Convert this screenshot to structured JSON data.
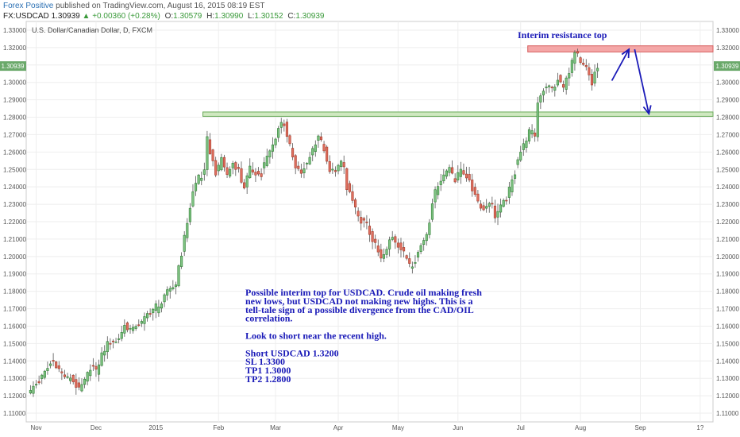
{
  "header": {
    "author": "Forex Positive",
    "published": "published on TradingView.com, August 16, 2015 08:19 EST",
    "symbol": "FX:USDCAD",
    "price": "1.30939",
    "change": "+0.00360 (+0.28%)",
    "o_label": "O:",
    "o_value": "1.30579",
    "h_label": "H:",
    "h_value": "1.30990",
    "l_label": "L:",
    "l_value": "1.30152",
    "c_label": "C:",
    "c_value": "1.30939"
  },
  "chart_data": {
    "type": "candlestick",
    "title": "U.S. Dollar/Canadian Dollar, D, FXCM",
    "ylim": [
      1.105,
      1.335
    ],
    "y_ticks": [
      "1.33000",
      "1.32000",
      "1.31000",
      "1.30000",
      "1.29000",
      "1.28000",
      "1.27000",
      "1.26000",
      "1.25000",
      "1.24000",
      "1.23000",
      "1.22000",
      "1.21000",
      "1.20000",
      "1.19000",
      "1.18000",
      "1.17000",
      "1.16000",
      "1.15000",
      "1.14000",
      "1.13000",
      "1.12000",
      "1.11000"
    ],
    "x_ticks": [
      {
        "label": "Nov",
        "bar": 3
      },
      {
        "label": "Dec",
        "bar": 24
      },
      {
        "label": "2015",
        "bar": 45
      },
      {
        "label": "Feb",
        "bar": 67
      },
      {
        "label": "Mar",
        "bar": 87
      },
      {
        "label": "Apr",
        "bar": 109
      },
      {
        "label": "May",
        "bar": 130
      },
      {
        "label": "Jun",
        "bar": 151
      },
      {
        "label": "Jul",
        "bar": 173
      },
      {
        "label": "Aug",
        "bar": 194
      },
      {
        "label": "Sep",
        "bar": 215
      },
      {
        "label": "1?",
        "bar": 236
      }
    ],
    "total_slots": 241,
    "current_price_label": "1.30939",
    "close_path": [
      [
        0,
        1.121
      ],
      [
        2,
        1.127
      ],
      [
        4,
        1.13
      ],
      [
        6,
        1.135
      ],
      [
        8,
        1.14
      ],
      [
        10,
        1.136
      ],
      [
        12,
        1.131
      ],
      [
        14,
        1.128
      ],
      [
        16,
        1.13
      ],
      [
        18,
        1.125
      ],
      [
        20,
        1.13
      ],
      [
        22,
        1.138
      ],
      [
        24,
        1.132
      ],
      [
        26,
        1.142
      ],
      [
        28,
        1.148
      ],
      [
        30,
        1.15
      ],
      [
        32,
        1.155
      ],
      [
        34,
        1.162
      ],
      [
        36,
        1.16
      ],
      [
        38,
        1.159
      ],
      [
        40,
        1.16
      ],
      [
        42,
        1.165
      ],
      [
        44,
        1.168
      ],
      [
        46,
        1.172
      ],
      [
        48,
        1.18
      ],
      [
        50,
        1.182
      ],
      [
        52,
        1.186
      ],
      [
        54,
        1.2
      ],
      [
        56,
        1.218
      ],
      [
        58,
        1.235
      ],
      [
        60,
        1.245
      ],
      [
        62,
        1.25
      ],
      [
        63,
        1.269
      ],
      [
        64,
        1.262
      ],
      [
        66,
        1.25
      ],
      [
        68,
        1.255
      ],
      [
        70,
        1.245
      ],
      [
        72,
        1.252
      ],
      [
        74,
        1.248
      ],
      [
        76,
        1.242
      ],
      [
        78,
        1.252
      ],
      [
        80,
        1.25
      ],
      [
        82,
        1.248
      ],
      [
        84,
        1.255
      ],
      [
        86,
        1.262
      ],
      [
        88,
        1.272
      ],
      [
        90,
        1.278
      ],
      [
        92,
        1.265
      ],
      [
        94,
        1.252
      ],
      [
        96,
        1.25
      ],
      [
        98,
        1.252
      ],
      [
        100,
        1.26
      ],
      [
        102,
        1.268
      ],
      [
        104,
        1.26
      ],
      [
        106,
        1.25
      ],
      [
        108,
        1.252
      ],
      [
        110,
        1.255
      ],
      [
        111,
        1.253
      ],
      [
        112,
        1.24
      ],
      [
        114,
        1.23
      ],
      [
        116,
        1.22
      ],
      [
        118,
        1.218
      ],
      [
        120,
        1.215
      ],
      [
        122,
        1.208
      ],
      [
        124,
        1.2
      ],
      [
        126,
        1.205
      ],
      [
        128,
        1.21
      ],
      [
        130,
        1.205
      ],
      [
        132,
        1.2
      ],
      [
        134,
        1.195
      ],
      [
        136,
        1.2
      ],
      [
        138,
        1.208
      ],
      [
        140,
        1.215
      ],
      [
        142,
        1.23
      ],
      [
        144,
        1.24
      ],
      [
        146,
        1.245
      ],
      [
        148,
        1.25
      ],
      [
        150,
        1.245
      ],
      [
        152,
        1.252
      ],
      [
        154,
        1.248
      ],
      [
        156,
        1.24
      ],
      [
        158,
        1.23
      ],
      [
        160,
        1.225
      ],
      [
        162,
        1.23
      ],
      [
        164,
        1.225
      ],
      [
        166,
        1.23
      ],
      [
        168,
        1.235
      ],
      [
        170,
        1.245
      ],
      [
        172,
        1.255
      ],
      [
        174,
        1.262
      ],
      [
        176,
        1.27
      ],
      [
        178,
        1.268
      ],
      [
        179,
        1.29
      ],
      [
        180,
        1.295
      ],
      [
        182,
        1.3
      ],
      [
        184,
        1.298
      ],
      [
        186,
        1.302
      ],
      [
        188,
        1.295
      ],
      [
        190,
        1.305
      ],
      [
        192,
        1.315
      ],
      [
        194,
        1.312
      ],
      [
        196,
        1.31
      ],
      [
        198,
        1.3
      ],
      [
        199,
        1.308
      ],
      [
        200,
        1.3094
      ]
    ],
    "zones": [
      {
        "name": "resistance-zone",
        "from_bar": 176,
        "to_bar": 241,
        "y_low": 1.3175,
        "y_high": 1.321,
        "fill": "#f4a7a7",
        "stroke": "#d65c5c"
      },
      {
        "name": "support-zone",
        "from_bar": 62,
        "to_bar": 241,
        "y_low": 1.2805,
        "y_high": 1.283,
        "fill": "#cfe8c0",
        "stroke": "#6aaa5a"
      }
    ],
    "projection": {
      "color": "#1a1ab8",
      "points": [
        [
          205,
          1.301
        ],
        [
          211,
          1.319
        ],
        [
          213,
          1.319
        ],
        [
          218,
          1.282
        ]
      ]
    }
  },
  "annotations": {
    "resistance_label": "Interim resistance top",
    "note_lines": [
      "Possible interim top for USDCAD. Crude oil making fresh",
      "new lows, but USDCAD not making new highs. This is a",
      "tell-tale sign of a possible divergence from the CAD/OIL",
      "correlation.",
      "",
      "Look to short near the recent high.",
      "",
      "Short USDCAD 1.3200",
      "SL 1.3300",
      "TP1 1.3000",
      "TP2 1.2800"
    ]
  },
  "colors": {
    "up_candle": "#7fc383",
    "up_border": "#2e7d32",
    "down_candle": "#e07060",
    "down_border": "#a33a2a",
    "grid": "#eeeeee",
    "axis_text": "#555555",
    "price_tag": "#6aa96a",
    "note_text": "#1a1ab8"
  }
}
